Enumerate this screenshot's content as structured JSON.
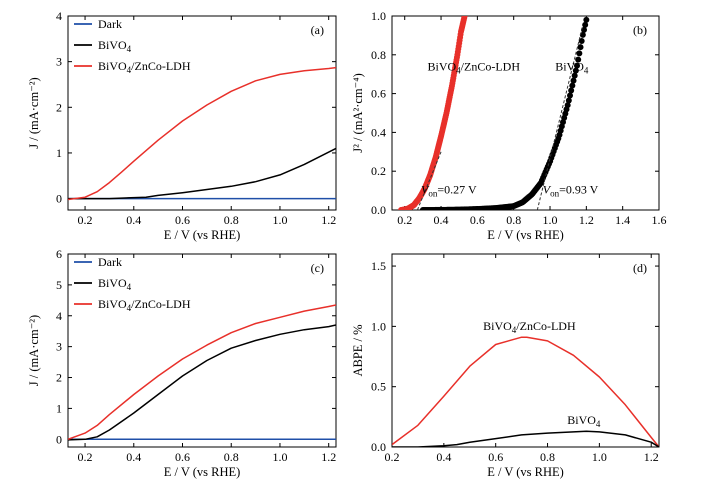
{
  "figure": {
    "colors": {
      "dark": "#1f4fa8",
      "bivo4": "#000000",
      "ldh": "#e8302a"
    }
  },
  "chart_data": [
    {
      "id": "a",
      "panel_label": "(a)",
      "type": "line",
      "xlabel": "E / V (vs RHE)",
      "ylabel": "J / (mA·cm⁻²)",
      "xlim": [
        0.13,
        1.23
      ],
      "ylim": [
        -0.25,
        4
      ],
      "xticks": [
        0.2,
        0.4,
        0.6,
        0.8,
        1.0,
        1.2
      ],
      "xtick_labels": [
        "0.2",
        "0.4",
        "0.6",
        "0.8",
        "1.0",
        "1.2"
      ],
      "yticks": [
        0,
        1,
        2,
        3,
        4
      ],
      "ytick_labels": [
        "0",
        "1",
        "2",
        "3",
        "4"
      ],
      "legend": "top-left",
      "legend_entries": [
        {
          "text": "Dark",
          "sub": "",
          "tail": "",
          "color": "#1f4fa8"
        },
        {
          "text": "BiVO",
          "sub": "4",
          "tail": "",
          "color": "#000000"
        },
        {
          "text": "BiVO",
          "sub": "4",
          "tail": "/ZnCo-LDH",
          "color": "#e8302a"
        }
      ],
      "series": [
        {
          "key": "dark",
          "color": "#1f4fa8",
          "x": [
            0.13,
            1.23
          ],
          "y": [
            0.0,
            0.0
          ]
        },
        {
          "key": "bivo4",
          "color": "#000000",
          "x": [
            0.13,
            0.3,
            0.45,
            0.5,
            0.6,
            0.7,
            0.8,
            0.9,
            1.0,
            1.1,
            1.23
          ],
          "y": [
            0.0,
            0.0,
            0.03,
            0.07,
            0.13,
            0.2,
            0.27,
            0.37,
            0.52,
            0.75,
            1.1
          ]
        },
        {
          "key": "ldh",
          "color": "#e8302a",
          "x": [
            0.13,
            0.2,
            0.25,
            0.3,
            0.35,
            0.4,
            0.5,
            0.6,
            0.7,
            0.8,
            0.9,
            1.0,
            1.1,
            1.2,
            1.23
          ],
          "y": [
            -0.02,
            0.03,
            0.15,
            0.35,
            0.58,
            0.82,
            1.28,
            1.7,
            2.05,
            2.35,
            2.58,
            2.72,
            2.8,
            2.85,
            2.87
          ]
        }
      ]
    },
    {
      "id": "b",
      "panel_label": "(b)",
      "type": "scatter",
      "xlabel": "E / V (vs RHE)",
      "ylabel": "J² / (mA²·cm⁻⁴)",
      "xlim": [
        0.13,
        1.6
      ],
      "ylim": [
        0,
        1.0
      ],
      "xticks": [
        0.2,
        0.4,
        0.6,
        0.8,
        1.0,
        1.2,
        1.4,
        1.6
      ],
      "xtick_labels": [
        "0.2",
        "0.4",
        "0.6",
        "0.8",
        "1.0",
        "1.2",
        "1.4",
        "1.6"
      ],
      "yticks": [
        0.0,
        0.2,
        0.4,
        0.6,
        0.8,
        1.0
      ],
      "ytick_labels": [
        "0.0",
        "0.2",
        "0.4",
        "0.6",
        "0.8",
        "1.0"
      ],
      "curve_labels": [
        {
          "text": "BiVO",
          "sub": "4",
          "tail": "/ZnCo-LDH",
          "x": 0.58,
          "y": 0.72
        },
        {
          "text": "BiVO",
          "sub": "4",
          "tail": "",
          "x": 1.12,
          "y": 0.72
        }
      ],
      "annotations": [
        {
          "pre": "V",
          "sub": "on",
          "tail": "=0.27 V",
          "x": 0.29,
          "y": 0.085
        },
        {
          "pre": "V",
          "sub": "on",
          "tail": "=0.93 V",
          "x": 0.96,
          "y": 0.085
        }
      ],
      "onset_lines": [
        {
          "x": [
            0.27,
            0.4
          ],
          "y": [
            0.0,
            0.3
          ]
        },
        {
          "x": [
            0.93,
            1.18
          ],
          "y": [
            0.0,
            0.95
          ]
        }
      ],
      "series": [
        {
          "key": "ldh",
          "color": "#e8302a",
          "x": [
            0.18,
            0.2,
            0.22,
            0.25,
            0.28,
            0.31,
            0.34,
            0.37,
            0.4,
            0.43,
            0.46,
            0.49,
            0.51,
            0.53
          ],
          "y": [
            0.0,
            0.002,
            0.008,
            0.025,
            0.06,
            0.11,
            0.18,
            0.27,
            0.38,
            0.5,
            0.64,
            0.8,
            0.92,
            1.0
          ]
        },
        {
          "key": "bivo4",
          "color": "#000000",
          "x": [
            0.3,
            0.4,
            0.5,
            0.6,
            0.7,
            0.8,
            0.85,
            0.9,
            0.95,
            1.0,
            1.05,
            1.1,
            1.15,
            1.18,
            1.2
          ],
          "y": [
            0.0,
            0.0005,
            0.002,
            0.005,
            0.01,
            0.02,
            0.04,
            0.08,
            0.14,
            0.25,
            0.38,
            0.55,
            0.75,
            0.9,
            0.98
          ]
        }
      ]
    },
    {
      "id": "c",
      "panel_label": "(c)",
      "type": "line",
      "xlabel": "E / V (vs RHE)",
      "ylabel": "J / (mA·cm⁻²)",
      "xlim": [
        0.13,
        1.23
      ],
      "ylim": [
        -0.25,
        6
      ],
      "xticks": [
        0.2,
        0.4,
        0.6,
        0.8,
        1.0,
        1.2
      ],
      "xtick_labels": [
        "0.2",
        "0.4",
        "0.6",
        "0.8",
        "1.0",
        "1.2"
      ],
      "yticks": [
        0,
        1,
        2,
        3,
        4,
        5,
        6
      ],
      "ytick_labels": [
        "0",
        "1",
        "2",
        "3",
        "4",
        "5",
        "6"
      ],
      "legend": "top-left",
      "legend_entries": [
        {
          "text": "Dark",
          "sub": "",
          "tail": "",
          "color": "#1f4fa8"
        },
        {
          "text": "BiVO",
          "sub": "4",
          "tail": "",
          "color": "#000000"
        },
        {
          "text": "BiVO",
          "sub": "4",
          "tail": "/ZnCo-LDH",
          "color": "#e8302a"
        }
      ],
      "series": [
        {
          "key": "dark",
          "color": "#1f4fa8",
          "x": [
            0.13,
            1.23
          ],
          "y": [
            0.0,
            0.0
          ]
        },
        {
          "key": "bivo4",
          "color": "#000000",
          "x": [
            0.13,
            0.2,
            0.25,
            0.3,
            0.4,
            0.5,
            0.6,
            0.7,
            0.8,
            0.9,
            1.0,
            1.1,
            1.2,
            1.23
          ],
          "y": [
            -0.02,
            0.0,
            0.08,
            0.3,
            0.85,
            1.45,
            2.05,
            2.55,
            2.95,
            3.2,
            3.4,
            3.55,
            3.65,
            3.7
          ]
        },
        {
          "key": "ldh",
          "color": "#e8302a",
          "x": [
            0.13,
            0.2,
            0.25,
            0.3,
            0.4,
            0.5,
            0.6,
            0.7,
            0.8,
            0.9,
            1.0,
            1.1,
            1.2,
            1.23
          ],
          "y": [
            0.0,
            0.2,
            0.45,
            0.8,
            1.45,
            2.05,
            2.6,
            3.05,
            3.45,
            3.75,
            3.95,
            4.15,
            4.3,
            4.35
          ]
        }
      ]
    },
    {
      "id": "d",
      "panel_label": "(d)",
      "type": "line",
      "xlabel": "E / V (vs RHE)",
      "ylabel": "ABPE / %",
      "xlim": [
        0.2,
        1.23
      ],
      "ylim": [
        0,
        1.6
      ],
      "xticks": [
        0.2,
        0.4,
        0.6,
        0.8,
        1.0,
        1.2
      ],
      "xtick_labels": [
        "0.2",
        "0.4",
        "0.6",
        "0.8",
        "1.0",
        "1.2"
      ],
      "yticks": [
        0.0,
        0.5,
        1.0,
        1.5
      ],
      "ytick_labels": [
        "0.0",
        "0.5",
        "1.0",
        "1.5"
      ],
      "curve_labels": [
        {
          "text": "BiVO",
          "sub": "4",
          "tail": "/ZnCo-LDH",
          "x": 0.73,
          "y": 0.97
        },
        {
          "text": "BiVO",
          "sub": "4",
          "tail": "",
          "x": 0.94,
          "y": 0.19
        }
      ],
      "series": [
        {
          "key": "ldh",
          "color": "#e8302a",
          "x": [
            0.2,
            0.3,
            0.4,
            0.5,
            0.6,
            0.7,
            0.72,
            0.8,
            0.9,
            1.0,
            1.1,
            1.2,
            1.23
          ],
          "y": [
            0.02,
            0.18,
            0.42,
            0.67,
            0.85,
            0.91,
            0.91,
            0.88,
            0.76,
            0.58,
            0.35,
            0.08,
            0.0
          ]
        },
        {
          "key": "bivo4",
          "color": "#000000",
          "x": [
            0.2,
            0.3,
            0.4,
            0.45,
            0.5,
            0.6,
            0.7,
            0.8,
            0.9,
            0.95,
            1.0,
            1.1,
            1.2,
            1.23
          ],
          "y": [
            0.0,
            0.0,
            0.01,
            0.02,
            0.04,
            0.07,
            0.1,
            0.115,
            0.125,
            0.13,
            0.125,
            0.1,
            0.04,
            0.0
          ]
        }
      ]
    }
  ]
}
